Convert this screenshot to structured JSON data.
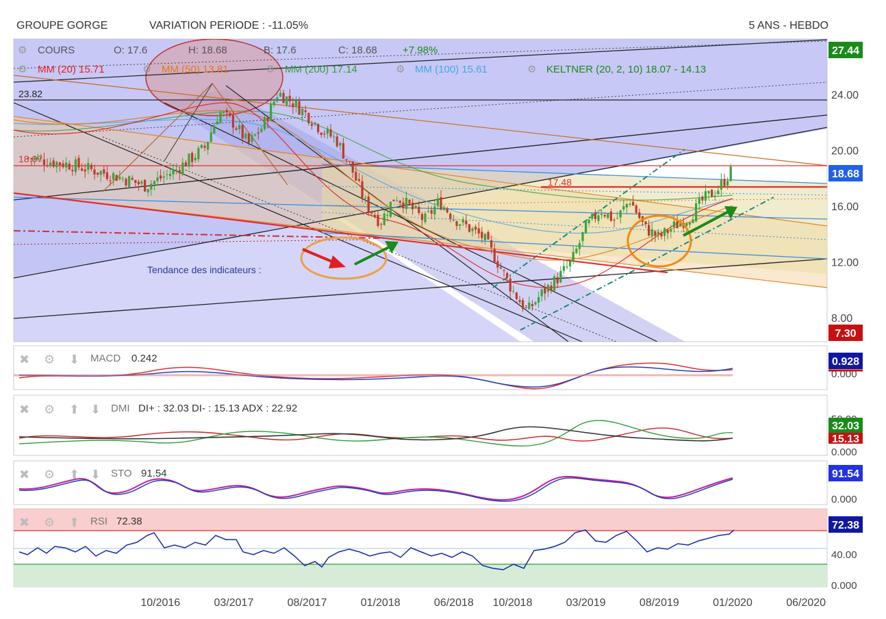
{
  "header": {
    "stock": "GROUPE GORGE",
    "variation": "VARIATION PERIODE : -11.05%",
    "period": "5 ANS - HEBDO"
  },
  "legend": {
    "cours": "COURS",
    "open": "O: 17.6",
    "high": "H: 18.68",
    "low": "B: 17.6",
    "close": "C: 18.68",
    "change": "+7.98%",
    "mm20": "MM (20) 15.71",
    "mm50": "MM (50) 13.81",
    "mm200": "MM (200) 17.14",
    "mm100": "MM (100) 15.61",
    "keltner": "KELTNER (20, 2, 10) 18.07 - 14.13"
  },
  "annotations": {
    "indicator_trend": "Tendance des indicateurs :",
    "level_23_82": "23.82",
    "level_18_07": "18.07",
    "level_17_48": "17.48"
  },
  "badges": {
    "max": "27.44",
    "last": "18.68",
    "min": "7.30",
    "macd": "0.928",
    "dmi_plus": "32.03",
    "dmi_minus": "15.13",
    "sto": "91.54",
    "rsi": "72.38"
  },
  "panels": {
    "macd": {
      "label": "MACD",
      "value": "0.242",
      "ticks": [
        "0.000"
      ]
    },
    "dmi": {
      "label": "DMI",
      "value": "DI+ : 32.03 DI- : 15.13 ADX : 22.92",
      "ticks": [
        "50.00",
        "0.000"
      ]
    },
    "sto": {
      "label": "STO",
      "value": "91.54",
      "ticks": [
        "0.000"
      ]
    },
    "rsi": {
      "label": "RSI",
      "value": "72.38",
      "ticks": [
        "40.00",
        "0.000"
      ]
    }
  },
  "colors": {
    "up": "#3aa33a",
    "down": "#c0392b",
    "mm20": "#e8201e",
    "mm50": "#e07b1a",
    "mm200": "#2e9e3a",
    "mm100": "#45a8e0",
    "keltner": "#1a8a1a",
    "badge_green": "#1a8a1a",
    "badge_blue": "#2260e8",
    "badge_red": "#c81010",
    "badge_navy": "#1018a0"
  },
  "chart_data": {
    "type": "candlestick",
    "title": "GROUPE GORGE",
    "yticks": [
      "24.00",
      "20.00",
      "16.00",
      "12.00",
      "8.00"
    ],
    "xticks": [
      "10/2016",
      "03/2017",
      "08/2017",
      "01/2018",
      "06/2018",
      "10/2018",
      "03/2019",
      "08/2019",
      "01/2020",
      "06/2020"
    ],
    "ylim": [
      7,
      28
    ],
    "x_range": [
      "2015-12",
      "2020-06"
    ],
    "close_path": [
      [
        "2016-01",
        19.5
      ],
      [
        "2016-04",
        19.0
      ],
      [
        "2016-07",
        18.2
      ],
      [
        "2016-09",
        17.5
      ],
      [
        "2016-11",
        18.6
      ],
      [
        "2017-01",
        20.2
      ],
      [
        "2017-02",
        22.8
      ],
      [
        "2017-03",
        22.0
      ],
      [
        "2017-04",
        20.5
      ],
      [
        "2017-05",
        21.8
      ],
      [
        "2017-06",
        24.2
      ],
      [
        "2017-07",
        23.5
      ],
      [
        "2017-08",
        22.6
      ],
      [
        "2017-09",
        21.5
      ],
      [
        "2017-10",
        20.8
      ],
      [
        "2017-11",
        18.8
      ],
      [
        "2017-12",
        16.2
      ],
      [
        "2018-01",
        14.9
      ],
      [
        "2018-02",
        16.8
      ],
      [
        "2018-03",
        16.0
      ],
      [
        "2018-04",
        15.0
      ],
      [
        "2018-05",
        16.4
      ],
      [
        "2018-06",
        15.2
      ],
      [
        "2018-07",
        14.5
      ],
      [
        "2018-08",
        13.8
      ],
      [
        "2018-09",
        12.0
      ],
      [
        "2018-10",
        10.0
      ],
      [
        "2018-11",
        8.5
      ],
      [
        "2018-12",
        9.8
      ],
      [
        "2019-01",
        10.8
      ],
      [
        "2019-02",
        12.0
      ],
      [
        "2019-03",
        14.5
      ],
      [
        "2019-04",
        15.8
      ],
      [
        "2019-05",
        15.0
      ],
      [
        "2019-06",
        16.5
      ],
      [
        "2019-07",
        14.5
      ],
      [
        "2019-08",
        13.8
      ],
      [
        "2019-09",
        14.6
      ],
      [
        "2019-10",
        15.2
      ],
      [
        "2019-11",
        16.5
      ],
      [
        "2019-12",
        17.3
      ],
      [
        "2020-01",
        18.68
      ]
    ],
    "levels": {
      "resistance": 18.68,
      "mid": 17.48,
      "prev_high": 23.82,
      "left_level": 18.07
    }
  }
}
